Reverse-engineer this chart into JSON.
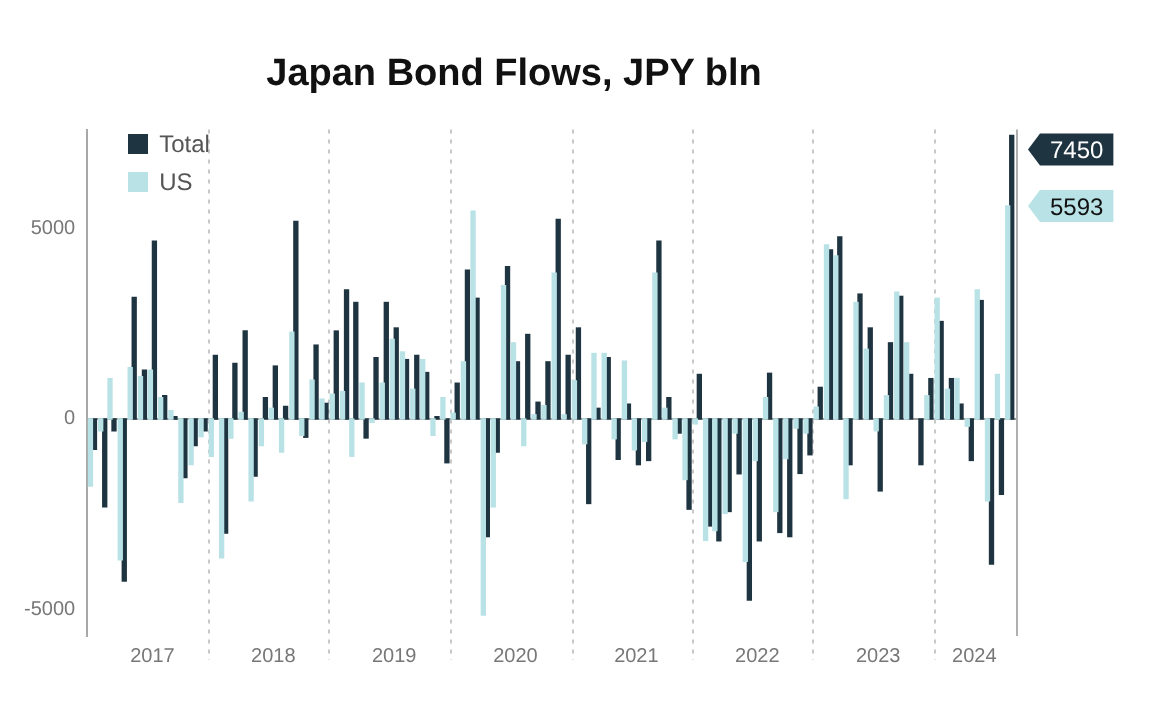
{
  "chart_data": {
    "type": "bar",
    "title": "Japan Bond Flows, JPY bln",
    "x": [
      "2017-01",
      "2017-02",
      "2017-03",
      "2017-04",
      "2017-05",
      "2017-06",
      "2017-07",
      "2017-08",
      "2017-09",
      "2017-10",
      "2017-11",
      "2017-12",
      "2018-01",
      "2018-02",
      "2018-03",
      "2018-04",
      "2018-05",
      "2018-06",
      "2018-07",
      "2018-08",
      "2018-09",
      "2018-10",
      "2018-11",
      "2018-12",
      "2019-01",
      "2019-02",
      "2019-03",
      "2019-04",
      "2019-05",
      "2019-06",
      "2019-07",
      "2019-08",
      "2019-09",
      "2019-10",
      "2019-11",
      "2019-12",
      "2020-01",
      "2020-02",
      "2020-03",
      "2020-04",
      "2020-05",
      "2020-06",
      "2020-07",
      "2020-08",
      "2020-09",
      "2020-10",
      "2020-11",
      "2020-12",
      "2021-01",
      "2021-02",
      "2021-03",
      "2021-04",
      "2021-05",
      "2021-06",
      "2021-07",
      "2021-08",
      "2021-09",
      "2021-10",
      "2021-11",
      "2021-12",
      "2022-01",
      "2022-02",
      "2022-03",
      "2022-04",
      "2022-05",
      "2022-06",
      "2022-07",
      "2022-08",
      "2022-09",
      "2022-10",
      "2022-11",
      "2022-12",
      "2023-01",
      "2023-02",
      "2023-03",
      "2023-04",
      "2023-05",
      "2023-06",
      "2023-07",
      "2023-08",
      "2023-09",
      "2023-10",
      "2023-11",
      "2023-12",
      "2024-01",
      "2024-02",
      "2024-03",
      "2024-04",
      "2024-05",
      "2024-06",
      "2024-07",
      "2024-08"
    ],
    "series": [
      {
        "name": "Total",
        "color": "#1f3441",
        "values": [
          -800,
          -2310,
          -310,
          -4260,
          3190,
          1280,
          4670,
          610,
          60,
          -1540,
          -700,
          -310,
          1670,
          -3000,
          1460,
          2310,
          -1500,
          560,
          1390,
          330,
          5190,
          -480,
          1940,
          410,
          2310,
          3390,
          3060,
          -500,
          1610,
          3060,
          2390,
          1560,
          1670,
          1220,
          60,
          -1150,
          940,
          3910,
          3170,
          -3090,
          -870,
          4000,
          1500,
          2220,
          440,
          1500,
          5240,
          1670,
          2390,
          -2220,
          280,
          1610,
          -1060,
          390,
          -1200,
          -1090,
          4670,
          560,
          -370,
          -2370,
          1170,
          -2810,
          -3200,
          -2430,
          -1440,
          -4760,
          -3200,
          1200,
          -2980,
          -3090,
          -1430,
          -940,
          830,
          4440,
          4780,
          -1200,
          3280,
          2390,
          -1890,
          2000,
          3220,
          1170,
          -1200,
          1060,
          2560,
          1060,
          390,
          -1090,
          3110,
          -3810,
          -1980,
          7450
        ]
      },
      {
        "name": "US",
        "color": "#b8e2e5",
        "values": [
          -1760,
          -310,
          1060,
          -3700,
          1350,
          1110,
          1280,
          560,
          220,
          -2190,
          -1200,
          -460,
          -980,
          -3650,
          -500,
          170,
          -2150,
          -700,
          280,
          -870,
          2280,
          -430,
          1020,
          520,
          650,
          720,
          -980,
          940,
          -90,
          940,
          2090,
          1760,
          780,
          1560,
          -430,
          560,
          150,
          1500,
          5460,
          -5150,
          -2310,
          3500,
          2000,
          -700,
          110,
          350,
          3830,
          110,
          1000,
          -650,
          1720,
          1720,
          -520,
          1520,
          -810,
          -590,
          3830,
          280,
          -520,
          -1590,
          -130,
          -3190,
          -2930,
          -2480,
          -370,
          -3740,
          -1090,
          560,
          -2430,
          -1040,
          -240,
          -370,
          310,
          4570,
          4280,
          -2090,
          3060,
          1830,
          -310,
          610,
          3330,
          2000,
          null,
          610,
          3170,
          780,
          1060,
          -190,
          3390,
          -2150,
          1170,
          5593
        ]
      }
    ],
    "xlim": [
      "2016-12-16",
      "2024-08-20"
    ],
    "xticks": [
      {
        "value": "2017-07-01",
        "label": "2017"
      },
      {
        "value": "2018-07-01",
        "label": "2018"
      },
      {
        "value": "2019-07-01",
        "label": "2019"
      },
      {
        "value": "2020-07-01",
        "label": "2020"
      },
      {
        "value": "2021-07-01",
        "label": "2021"
      },
      {
        "value": "2022-07-01",
        "label": "2022"
      },
      {
        "value": "2023-07-01",
        "label": "2023"
      },
      {
        "value": "2024-04-16",
        "label": "2024"
      }
    ],
    "ylim": [
      -5700,
      7600
    ],
    "yticks": [
      -5000,
      0,
      5000
    ],
    "ref_lines": [
      {
        "axis": "y",
        "value": 0,
        "color": "#9e9e9e",
        "line_style": "solid"
      },
      {
        "axis": "x",
        "value": "2017-12-16",
        "color": "#c8c8c8",
        "line_style": "dotted"
      },
      {
        "axis": "x",
        "value": "2018-12-16",
        "color": "#c8c8c8",
        "line_style": "dotted"
      },
      {
        "axis": "x",
        "value": "2019-12-16",
        "color": "#c8c8c8",
        "line_style": "dotted"
      },
      {
        "axis": "x",
        "value": "2020-12-16",
        "color": "#c8c8c8",
        "line_style": "dotted"
      },
      {
        "axis": "x",
        "value": "2021-12-16",
        "color": "#c8c8c8",
        "line_style": "dotted"
      },
      {
        "axis": "x",
        "value": "2022-12-16",
        "color": "#c8c8c8",
        "line_style": "dotted"
      },
      {
        "axis": "x",
        "value": "2023-12-16",
        "color": "#c8c8c8",
        "line_style": "dotted"
      }
    ],
    "annotations": [
      {
        "text": "7450",
        "x": "2024-08",
        "y": 7450
      },
      {
        "text": "5593",
        "x": "2024-08",
        "y": 5593
      }
    ],
    "grid": false,
    "legend": "top left"
  }
}
